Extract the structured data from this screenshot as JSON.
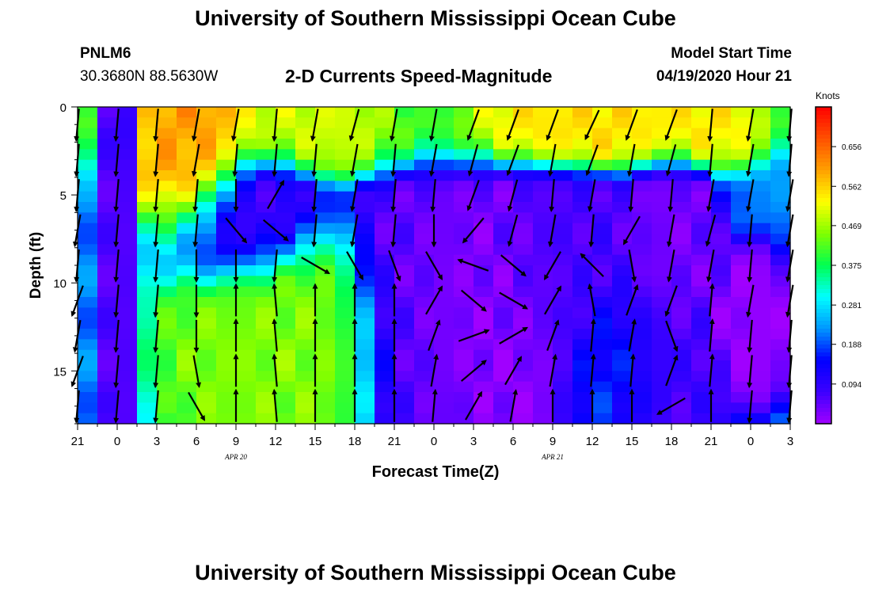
{
  "header": {
    "title": "University of Southern Mississippi Ocean Cube",
    "station_id": "PNLM6",
    "station_coords": "30.3680N 88.5630W",
    "plot_title": "2-D Currents Speed-Magnitude",
    "model_start_label": "Model Start Time",
    "model_start_value": "04/19/2020 Hour 21"
  },
  "footer": {
    "title": "University of Southern Mississippi Ocean Cube"
  },
  "chart_data": {
    "type": "heatmap",
    "title": "2-D Currents Speed-Magnitude",
    "xlabel": "Forecast Time(Z)",
    "ylabel": "Depth (ft)",
    "colorbar_label": "Knots",
    "colorbar_ticks": [
      "0.656",
      "0.562",
      "0.469",
      "0.375",
      "0.281",
      "0.188",
      "0.094"
    ],
    "colorbar_values": [
      0.656,
      0.562,
      0.469,
      0.375,
      0.281,
      0.188,
      0.094
    ],
    "vmin": 0.0,
    "vmax": 0.75,
    "x_tick_labels": [
      "21",
      "0",
      "3",
      "6",
      "9",
      "12",
      "15",
      "18",
      "21",
      "0",
      "3",
      "6",
      "9",
      "12",
      "15",
      "18",
      "21",
      "0",
      "3"
    ],
    "x_date_labels": [
      {
        "text": "APR 20",
        "hour": 12
      },
      {
        "text": "APR 21",
        "hour": 36
      }
    ],
    "y_tick_labels": [
      "0",
      "5",
      "10",
      "15"
    ],
    "y_tick_values": [
      0,
      5,
      10,
      15
    ],
    "xlim": [
      0,
      54
    ],
    "ylim": [
      18,
      0
    ],
    "hour_step": 1.5,
    "depth_step": 0.6,
    "speed_centers": [
      {
        "hour": 3,
        "depth": 9,
        "speed": 0.06,
        "sx": 0.7,
        "sy": 30
      },
      {
        "hour": 9.5,
        "depth": 2,
        "speed": 0.62,
        "sx": 2.4,
        "sy": 3.2
      },
      {
        "hour": 16.5,
        "depth": 13.5,
        "speed": 0.45,
        "sx": 4.5,
        "sy": 4.5
      },
      {
        "hour": 13.5,
        "depth": 6,
        "speed": 0.06,
        "sx": 3.5,
        "sy": 2.5
      },
      {
        "hour": 20,
        "depth": 1.5,
        "speed": 0.5,
        "sx": 8,
        "sy": 1.6
      },
      {
        "hour": 30.5,
        "depth": 11,
        "speed": 0.01,
        "sx": 4.5,
        "sy": 4.5
      },
      {
        "hour": 26,
        "depth": 11,
        "speed": 0.05,
        "sx": 3.5,
        "sy": 7
      },
      {
        "hour": 36,
        "depth": 9,
        "speed": 0.07,
        "sx": 4.5,
        "sy": 3.5
      },
      {
        "hour": 44,
        "depth": 12,
        "speed": 0.03,
        "sx": 2.2,
        "sy": 5
      },
      {
        "hour": 51,
        "depth": 12.5,
        "speed": 0.01,
        "sx": 1.4,
        "sy": 2
      },
      {
        "hour": 38,
        "depth": 1,
        "speed": 0.55,
        "sx": 6,
        "sy": 1.5
      },
      {
        "hour": 42,
        "depth": 14,
        "speed": 0.17,
        "sx": 3,
        "sy": 3
      }
    ],
    "vector_columns_hours": [
      0,
      3,
      6,
      9,
      12,
      15,
      18,
      21,
      24,
      27,
      30,
      33,
      36,
      39,
      42,
      45,
      48,
      51,
      54
    ],
    "vector_rows_depths": [
      1,
      3,
      5,
      7,
      9,
      11,
      13,
      15,
      17
    ],
    "vector_angles_deg": [
      [
        95,
        95,
        95,
        100,
        95,
        110,
        100,
        110,
        95
      ],
      [
        95,
        95,
        95,
        95,
        95,
        95,
        95,
        95,
        95
      ],
      [
        95,
        95,
        95,
        95,
        95,
        95,
        95,
        95,
        95
      ],
      [
        100,
        100,
        95,
        95,
        90,
        90,
        90,
        80,
        60
      ],
      [
        100,
        95,
        90,
        50,
        90,
        270,
        270,
        270,
        270
      ],
      [
        95,
        95,
        300,
        40,
        95,
        265,
        265,
        265,
        265
      ],
      [
        100,
        95,
        95,
        95,
        30,
        270,
        270,
        270,
        270
      ],
      [
        105,
        100,
        100,
        100,
        60,
        270,
        270,
        270,
        270
      ],
      [
        100,
        95,
        95,
        95,
        70,
        270,
        270,
        270,
        270
      ],
      [
        100,
        100,
        95,
        90,
        60,
        300,
        290,
        280,
        275
      ],
      [
        110,
        105,
        110,
        130,
        200,
        40,
        340,
        320,
        300
      ],
      [
        110,
        110,
        105,
        105,
        40,
        30,
        330,
        300,
        280
      ],
      [
        110,
        100,
        95,
        100,
        120,
        300,
        290,
        280,
        270
      ],
      [
        115,
        110,
        100,
        95,
        225,
        260,
        275,
        275,
        270
      ],
      [
        110,
        100,
        95,
        120,
        80,
        290,
        280,
        275,
        270
      ],
      [
        110,
        105,
        95,
        100,
        100,
        110,
        70,
        290,
        150
      ],
      [
        95,
        95,
        100,
        105,
        100,
        275,
        275,
        275,
        270
      ],
      [
        100,
        100,
        100,
        95,
        95,
        100,
        95,
        95,
        95
      ],
      [
        95,
        95,
        100,
        100,
        100,
        100,
        95,
        95,
        95
      ]
    ]
  },
  "colors": {
    "background": "#ffffff",
    "vector": "#000000",
    "colormap": [
      "#a000ff",
      "#3c00ff",
      "#0000ff",
      "#0096ff",
      "#00ffff",
      "#00ff50",
      "#80ff00",
      "#ffff00",
      "#ffa000",
      "#ff5000",
      "#ff0000"
    ]
  }
}
